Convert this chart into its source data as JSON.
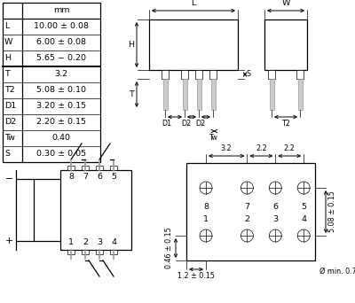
{
  "table_rows": [
    [
      "L",
      "10.00 ± 0.08"
    ],
    [
      "W",
      "6.00 ± 0.08"
    ],
    [
      "H",
      "5.65 − 0.20"
    ],
    [
      "T",
      "3.2"
    ],
    [
      "T2",
      "5.08 ± 0.10"
    ],
    [
      "D1",
      "3.20 ± 0.15"
    ],
    [
      "D2",
      "2.20 ± 0.15"
    ],
    [
      "Tw",
      "0.40"
    ],
    [
      "S",
      "0.30 ± 0.05"
    ]
  ],
  "group_break": 3,
  "bg": "#ffffff",
  "lc": "#000000",
  "gc": "#999999"
}
